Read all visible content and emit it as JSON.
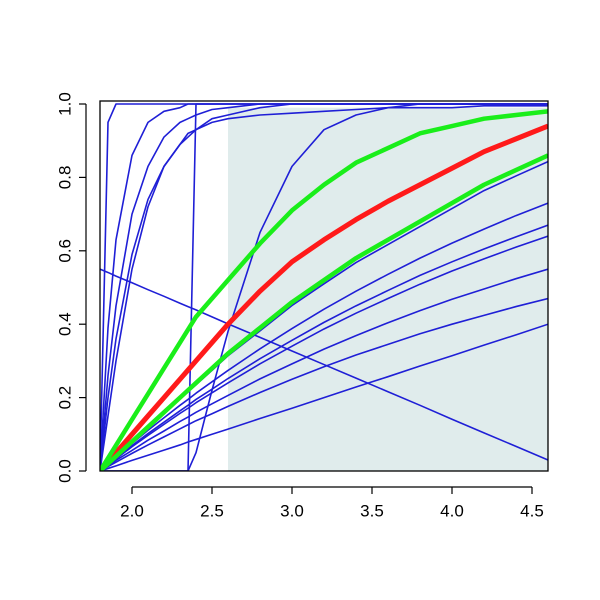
{
  "chart_data": {
    "type": "line",
    "x": [
      1.8,
      1.85,
      1.9,
      2.0,
      2.1,
      2.2,
      2.3,
      2.35,
      2.4,
      2.5,
      2.6,
      2.8,
      3.0,
      3.2,
      3.4,
      3.6,
      3.8,
      4.0,
      4.2,
      4.4,
      4.6
    ],
    "xlim": [
      1.8,
      4.6
    ],
    "ylim": [
      0,
      1.008
    ],
    "xticks": [
      {
        "value": 2,
        "label": "2.0"
      },
      {
        "value": 2.5,
        "label": "2.5"
      },
      {
        "value": 3,
        "label": "3.0"
      },
      {
        "value": 3.5,
        "label": "3.5"
      },
      {
        "value": 4,
        "label": "4.0"
      },
      {
        "value": 4.5,
        "label": "4.5"
      }
    ],
    "yticks": [
      {
        "value": 0,
        "label": "0.0"
      },
      0.2,
      0.4,
      0.6,
      0.8,
      {
        "value": 1,
        "label": "1.0"
      }
    ],
    "shade": {
      "xlim": [
        2.6,
        4.6
      ],
      "ylim": [
        0,
        0.99
      ],
      "color": "#e0ecec"
    },
    "series": [
      {
        "color": "#1f1fd6",
        "width": 1.6,
        "values": [
          0,
          0.95,
          1,
          1,
          1,
          1,
          1,
          1,
          1,
          1,
          1,
          1,
          1,
          1,
          1,
          1,
          1,
          1,
          1,
          1,
          1
        ]
      },
      {
        "color": "#1f1fd6",
        "width": 1.6,
        "values": [
          0,
          0.39,
          0.63,
          0.86,
          0.95,
          0.98,
          0.99,
          1,
          1,
          1,
          1,
          1,
          1,
          1,
          1,
          1,
          1,
          1,
          1,
          1,
          1
        ]
      },
      {
        "color": "#1f1fd6",
        "width": 1.6,
        "values": [
          0,
          0.26,
          0.45,
          0.7,
          0.83,
          0.91,
          0.95,
          0.96,
          0.97,
          0.985,
          0.99,
          1,
          1,
          1,
          1,
          1,
          1,
          1,
          1,
          1,
          1
        ]
      },
      {
        "color": "#1f1fd6",
        "width": 1.6,
        "values": [
          0,
          0.2,
          0.36,
          0.59,
          0.74,
          0.83,
          0.89,
          0.92,
          0.93,
          0.96,
          0.97,
          0.99,
          1,
          1,
          1,
          1,
          1,
          1,
          1,
          1,
          1
        ]
      },
      {
        "color": "#1f1fd6",
        "width": 1.6,
        "values": [
          0,
          0.15,
          0.3,
          0.55,
          0.72,
          0.83,
          0.89,
          0.91,
          0.93,
          0.95,
          0.96,
          0.97,
          0.975,
          0.98,
          0.985,
          0.99,
          0.99,
          0.99,
          0.995,
          0.995,
          0.995
        ]
      },
      {
        "color": "#1f1fd6",
        "width": 1.6,
        "values": [
          0,
          0,
          0,
          0,
          0,
          0,
          0,
          0,
          1,
          1,
          1,
          1,
          1,
          1,
          1,
          1,
          1,
          1,
          1,
          1,
          1
        ]
      },
      {
        "color": "#1f1fd6",
        "width": 1.6,
        "values": [
          0,
          0,
          0,
          0,
          0,
          0,
          0,
          0,
          0.05,
          0.22,
          0.38,
          0.65,
          0.83,
          0.93,
          0.97,
          0.99,
          1,
          1,
          1,
          1,
          1
        ]
      },
      {
        "color": "#1f1fd6",
        "width": 1.6,
        "values": [
          0,
          0.02,
          0.039,
          0.078,
          0.118,
          0.157,
          0.196,
          0.216,
          0.235,
          0.274,
          0.314,
          0.382,
          0.451,
          0.51,
          0.568,
          0.617,
          0.666,
          0.715,
          0.764,
          0.804,
          0.843
        ]
      },
      {
        "color": "#1f1fd6",
        "width": 1.6,
        "values": [
          0,
          0.019,
          0.038,
          0.075,
          0.111,
          0.145,
          0.179,
          0.195,
          0.212,
          0.243,
          0.274,
          0.333,
          0.388,
          0.441,
          0.49,
          0.536,
          0.58,
          0.621,
          0.659,
          0.696,
          0.73
        ]
      },
      {
        "color": "#1f1fd6",
        "width": 1.6,
        "values": [
          0,
          0.017,
          0.035,
          0.069,
          0.102,
          0.133,
          0.164,
          0.179,
          0.195,
          0.223,
          0.252,
          0.306,
          0.356,
          0.405,
          0.45,
          0.492,
          0.533,
          0.57,
          0.605,
          0.638,
          0.67
        ]
      },
      {
        "color": "#1f1fd6",
        "width": 1.6,
        "values": [
          0,
          0.017,
          0.033,
          0.066,
          0.097,
          0.127,
          0.157,
          0.171,
          0.186,
          0.213,
          0.24,
          0.292,
          0.34,
          0.387,
          0.43,
          0.47,
          0.509,
          0.545,
          0.578,
          0.61,
          0.64
        ]
      },
      {
        "color": "#1f1fd6",
        "width": 1.6,
        "values": [
          0,
          0.014,
          0.029,
          0.056,
          0.084,
          0.109,
          0.135,
          0.147,
          0.16,
          0.183,
          0.206,
          0.251,
          0.292,
          0.332,
          0.369,
          0.404,
          0.437,
          0.468,
          0.496,
          0.524,
          0.55
        ]
      },
      {
        "color": "#1f1fd6",
        "width": 1.6,
        "values": [
          0,
          0.012,
          0.024,
          0.048,
          0.071,
          0.093,
          0.115,
          0.126,
          0.137,
          0.156,
          0.176,
          0.214,
          0.25,
          0.284,
          0.316,
          0.345,
          0.374,
          0.4,
          0.424,
          0.448,
          0.47
        ]
      },
      {
        "color": "#1f1fd6",
        "width": 1.6,
        "values": [
          0,
          0.007,
          0.014,
          0.029,
          0.043,
          0.057,
          0.071,
          0.079,
          0.086,
          0.1,
          0.114,
          0.143,
          0.171,
          0.2,
          0.229,
          0.257,
          0.286,
          0.314,
          0.343,
          0.371,
          0.4
        ]
      },
      {
        "color": "#1f1fd6",
        "width": 1.6,
        "values": [
          0.55,
          0.541,
          0.531,
          0.513,
          0.494,
          0.476,
          0.457,
          0.448,
          0.439,
          0.42,
          0.401,
          0.364,
          0.327,
          0.29,
          0.253,
          0.216,
          0.179,
          0.141,
          0.104,
          0.067,
          0.03
        ]
      },
      {
        "color": "#ff1a1a",
        "width": 5,
        "values": [
          0,
          0.025,
          0.05,
          0.1,
          0.15,
          0.2,
          0.25,
          0.275,
          0.3,
          0.35,
          0.4,
          0.49,
          0.57,
          0.63,
          0.685,
          0.735,
          0.78,
          0.825,
          0.87,
          0.905,
          0.94
        ]
      },
      {
        "color": "#1aee1a",
        "width": 4.5,
        "values": [
          0,
          0.035,
          0.07,
          0.14,
          0.21,
          0.28,
          0.35,
          0.385,
          0.42,
          0.47,
          0.52,
          0.62,
          0.71,
          0.78,
          0.84,
          0.88,
          0.92,
          0.94,
          0.96,
          0.97,
          0.98
        ]
      },
      {
        "color": "#1aee1a",
        "width": 4.5,
        "values": [
          0,
          0.02,
          0.04,
          0.08,
          0.12,
          0.16,
          0.2,
          0.22,
          0.24,
          0.28,
          0.32,
          0.39,
          0.46,
          0.52,
          0.58,
          0.63,
          0.68,
          0.73,
          0.78,
          0.82,
          0.86
        ]
      }
    ]
  }
}
